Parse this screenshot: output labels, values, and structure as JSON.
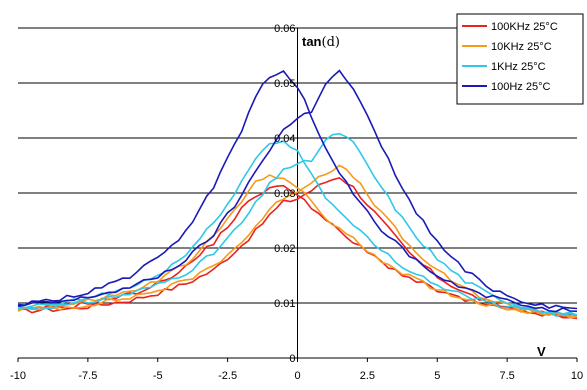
{
  "chart_data": {
    "type": "line",
    "ylabel_bold": "tan",
    "ylabel_rest": "(d)",
    "xlabel": "V",
    "xlim": [
      -10,
      10
    ],
    "ylim": [
      0,
      0.06
    ],
    "x_ticks": [
      "-10",
      "-7.5",
      "-5",
      "-2.5",
      "0",
      "2.5",
      "5",
      "7.5",
      "10"
    ],
    "y_ticks": [
      "0",
      "0.01",
      "0.02",
      "0.03",
      "0.04",
      "0.05",
      "0.06"
    ],
    "grid": "horizontal",
    "legend_position": "top-right",
    "series": [
      {
        "name": "100KHz 25°C",
        "color": "#e8231f",
        "sweep_up": {
          "x": [
            -10,
            -8,
            -6,
            -5,
            -4,
            -3,
            -2,
            -1.5,
            -1,
            -0.5,
            0,
            0.5,
            1,
            1.5,
            2,
            3,
            4,
            5,
            6,
            7,
            8,
            9,
            10
          ],
          "y": [
            0.0085,
            0.009,
            0.0105,
            0.0118,
            0.0135,
            0.016,
            0.0205,
            0.023,
            0.026,
            0.0283,
            0.029,
            0.0305,
            0.032,
            0.033,
            0.031,
            0.025,
            0.019,
            0.0148,
            0.0118,
            0.0098,
            0.0088,
            0.008,
            0.0075
          ]
        },
        "sweep_down": {
          "x": [
            -10,
            -8,
            -6,
            -5,
            -4,
            -3,
            -2,
            -1.5,
            -1,
            -0.5,
            0,
            0.5,
            1,
            1.5,
            2,
            3,
            4,
            5,
            6,
            7,
            8,
            9,
            10
          ],
          "y": [
            0.0085,
            0.0095,
            0.0115,
            0.0135,
            0.0165,
            0.021,
            0.027,
            0.0295,
            0.031,
            0.031,
            0.03,
            0.0275,
            0.025,
            0.023,
            0.021,
            0.0175,
            0.0145,
            0.0123,
            0.0105,
            0.0093,
            0.0085,
            0.0078,
            0.0072
          ]
        }
      },
      {
        "name": "10KHz 25°C",
        "color": "#f59a1b",
        "sweep_up": {
          "x": [
            -10,
            -8,
            -6,
            -5,
            -4,
            -3,
            -2,
            -1.5,
            -1,
            -0.5,
            0,
            0.5,
            1,
            1.5,
            2,
            3,
            4,
            5,
            6,
            7,
            8,
            9,
            10
          ],
          "y": [
            0.0088,
            0.0093,
            0.011,
            0.0123,
            0.014,
            0.0168,
            0.021,
            0.024,
            0.0268,
            0.0292,
            0.0305,
            0.032,
            0.0338,
            0.0348,
            0.033,
            0.0265,
            0.0203,
            0.0158,
            0.0125,
            0.0103,
            0.009,
            0.0082,
            0.0077
          ]
        },
        "sweep_down": {
          "x": [
            -10,
            -8,
            -6,
            -5,
            -4,
            -3,
            -2,
            -1.5,
            -1,
            -0.5,
            0,
            0.5,
            1,
            1.5,
            2,
            3,
            4,
            5,
            6,
            7,
            8,
            9,
            10
          ],
          "y": [
            0.0088,
            0.0098,
            0.012,
            0.014,
            0.0172,
            0.022,
            0.0285,
            0.0318,
            0.0333,
            0.033,
            0.031,
            0.0283,
            0.0255,
            0.0235,
            0.0215,
            0.0178,
            0.0148,
            0.0125,
            0.0107,
            0.0095,
            0.0087,
            0.008,
            0.0075
          ]
        }
      },
      {
        "name": "1KHz 25°C",
        "color": "#2fc8e6",
        "sweep_up": {
          "x": [
            -10,
            -8,
            -6,
            -5,
            -4,
            -3,
            -2,
            -1.5,
            -1,
            -0.5,
            0,
            0.5,
            1,
            1.5,
            2,
            3,
            4,
            5,
            6,
            7,
            8,
            9,
            10
          ],
          "y": [
            0.009,
            0.0097,
            0.0117,
            0.0133,
            0.0155,
            0.019,
            0.0245,
            0.028,
            0.0315,
            0.0345,
            0.035,
            0.036,
            0.0395,
            0.041,
            0.039,
            0.031,
            0.0235,
            0.018,
            0.014,
            0.0112,
            0.0095,
            0.0085,
            0.0078
          ]
        },
        "sweep_down": {
          "x": [
            -10,
            -8,
            -6,
            -5,
            -4,
            -3,
            -2,
            -1.5,
            -1,
            -0.5,
            0,
            0.5,
            1,
            1.5,
            2,
            3,
            4,
            5,
            6,
            7,
            8,
            9,
            10
          ],
          "y": [
            0.009,
            0.0103,
            0.0128,
            0.015,
            0.0187,
            0.0245,
            0.032,
            0.0362,
            0.039,
            0.0395,
            0.0375,
            0.0335,
            0.0295,
            0.0265,
            0.024,
            0.0195,
            0.016,
            0.0133,
            0.0113,
            0.0098,
            0.0088,
            0.0082,
            0.0077
          ]
        }
      },
      {
        "name": "100Hz 25°C",
        "color": "#1a1ab5",
        "sweep_up": {
          "x": [
            -10,
            -8,
            -6,
            -5,
            -4,
            -3,
            -2,
            -1.5,
            -1,
            -0.5,
            0,
            0.5,
            1,
            1.5,
            2,
            3,
            4,
            5,
            6,
            7,
            8,
            9,
            10
          ],
          "y": [
            0.0095,
            0.0105,
            0.0128,
            0.0148,
            0.0178,
            0.0225,
            0.0295,
            0.034,
            0.038,
            0.0415,
            0.0435,
            0.045,
            0.05,
            0.052,
            0.049,
            0.0385,
            0.0285,
            0.021,
            0.0158,
            0.0125,
            0.0105,
            0.0095,
            0.009
          ]
        },
        "sweep_down": {
          "x": [
            -10,
            -8,
            -6,
            -5,
            -4,
            -3,
            -2,
            -1.5,
            -1,
            -0.5,
            0,
            0.5,
            1,
            1.5,
            2,
            3,
            4,
            5,
            6,
            7,
            8,
            9,
            10
          ],
          "y": [
            0.0095,
            0.0112,
            0.0148,
            0.018,
            0.023,
            0.031,
            0.0415,
            0.0478,
            0.051,
            0.052,
            0.0495,
            0.044,
            0.038,
            0.0335,
            0.03,
            0.0235,
            0.0185,
            0.0148,
            0.0125,
            0.011,
            0.0098,
            0.009,
            0.0085
          ]
        }
      }
    ]
  }
}
